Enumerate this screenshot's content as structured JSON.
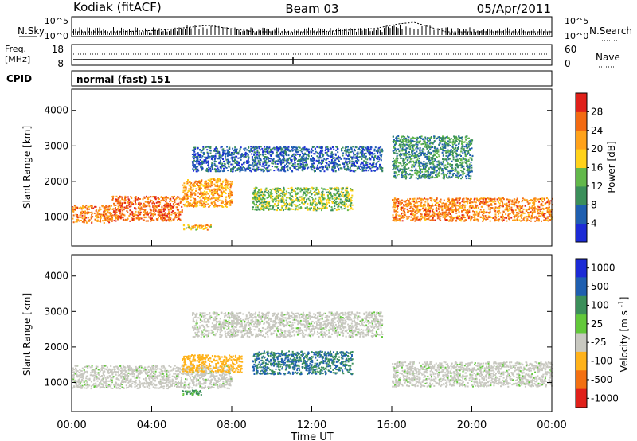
{
  "header": {
    "station": "Kodiak (fitACF)",
    "beam": "Beam 03",
    "date": "05/Apr/2011"
  },
  "top_panel": {
    "left_label": "N.Sky",
    "right_label": "N.Search",
    "left_ticks": [
      "10^5",
      "10^0"
    ],
    "right_ticks": [
      "10^5",
      "10^0"
    ]
  },
  "freq_panel": {
    "left_label_1": "Freq.",
    "left_label_2": "[MHz]",
    "left_ticks": [
      "18",
      "8"
    ],
    "right_label": "Nave",
    "right_ticks": [
      "60",
      "0"
    ]
  },
  "cpid": {
    "label": "CPID",
    "value": "normal (fast) 151"
  },
  "colors": {
    "power_scale": [
      "#1c2bd6",
      "#1f5fb0",
      "#3b8f5a",
      "#62b84a",
      "#ffd21a",
      "#ffa21a",
      "#f36a12",
      "#e0201a"
    ],
    "velocity_scale": [
      "#1c2bd6",
      "#1f5fb0",
      "#3b8f5a",
      "#62c83a",
      "#c8c8c0",
      "#ffb21a",
      "#f37012",
      "#e0201a"
    ]
  },
  "chart_data": [
    {
      "type": "heatmap",
      "name": "power",
      "xlabel": "Time UT",
      "ylabel": "Slant Range [km]",
      "xlim": [
        0,
        24
      ],
      "ylim": [
        180,
        4600
      ],
      "x_tick_labels": [
        "00:00",
        "04:00",
        "08:00",
        "12:00",
        "16:00",
        "20:00",
        "00:00"
      ],
      "y_ticks": [
        1000,
        2000,
        3000,
        4000
      ],
      "colorbar": {
        "label": "Power [dB]",
        "ticks": [
          "4",
          "8",
          "12",
          "16",
          "20",
          "24",
          "28"
        ],
        "range": [
          0,
          32
        ]
      },
      "regions": [
        {
          "t_start": 0.0,
          "t_end": 2.0,
          "range_lo": 850,
          "range_hi": 1350,
          "value": 24
        },
        {
          "t_start": 2.0,
          "t_end": 5.5,
          "range_lo": 900,
          "range_hi": 1600,
          "value": 26
        },
        {
          "t_start": 5.5,
          "t_end": 8.0,
          "range_lo": 1300,
          "range_hi": 2100,
          "value": 22
        },
        {
          "t_start": 5.5,
          "t_end": 7.0,
          "range_lo": 650,
          "range_hi": 800,
          "value": 20
        },
        {
          "t_start": 9.0,
          "t_end": 14.0,
          "range_lo": 1200,
          "range_hi": 1850,
          "value": 14
        },
        {
          "t_start": 16.0,
          "t_end": 24.0,
          "range_lo": 900,
          "range_hi": 1550,
          "value": 24
        },
        {
          "t_start": 6.0,
          "t_end": 15.5,
          "range_lo": 2300,
          "range_hi": 3000,
          "value": 6
        },
        {
          "t_start": 16.0,
          "t_end": 20.0,
          "range_lo": 2100,
          "range_hi": 3300,
          "value": 10
        }
      ]
    },
    {
      "type": "heatmap",
      "name": "velocity",
      "xlabel": "Time UT",
      "ylabel": "Slant Range [km]",
      "xlim": [
        0,
        24
      ],
      "ylim": [
        180,
        4600
      ],
      "x_tick_labels": [
        "00:00",
        "04:00",
        "08:00",
        "12:00",
        "16:00",
        "20:00",
        "00:00"
      ],
      "y_ticks": [
        1000,
        2000,
        3000,
        4000
      ],
      "colorbar": {
        "label": "Velocity [m s^-1]",
        "ticks": [
          "1000",
          "500",
          "100",
          "25",
          "-25",
          "-100",
          "-500",
          "-1000"
        ]
      },
      "regions": [
        {
          "t_start": 0.0,
          "t_end": 8.0,
          "range_lo": 850,
          "range_hi": 1500,
          "value": 0
        },
        {
          "t_start": 16.0,
          "t_end": 24.0,
          "range_lo": 900,
          "range_hi": 1600,
          "value": 0
        },
        {
          "t_start": 9.0,
          "t_end": 14.0,
          "range_lo": 1250,
          "range_hi": 1900,
          "value": 300
        },
        {
          "t_start": 5.5,
          "t_end": 8.5,
          "range_lo": 1300,
          "range_hi": 1800,
          "value": -200
        },
        {
          "t_start": 5.5,
          "t_end": 6.5,
          "range_lo": 650,
          "range_hi": 800,
          "value": 80
        },
        {
          "t_start": 6.0,
          "t_end": 15.5,
          "range_lo": 2300,
          "range_hi": 3000,
          "value": 0
        }
      ]
    }
  ]
}
